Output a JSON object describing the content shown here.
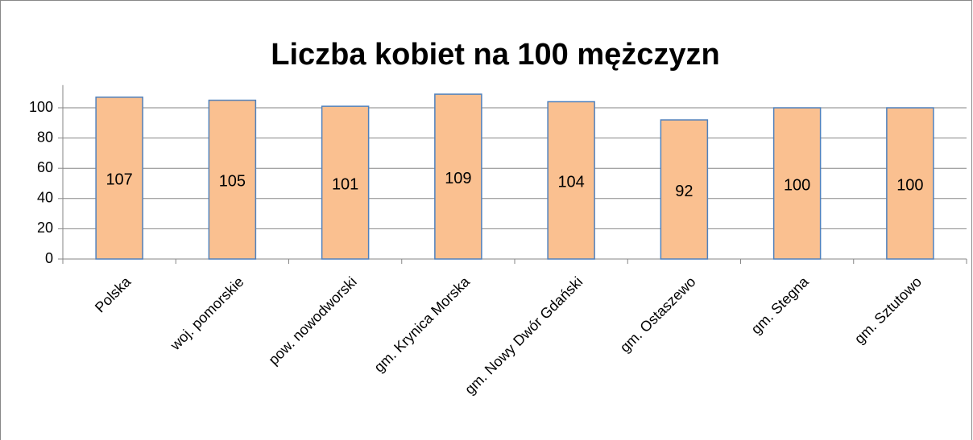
{
  "chart_data": {
    "type": "bar",
    "title": "Liczba kobiet na 100 mężczyzn",
    "categories": [
      "Polska",
      "woj. pomorskie",
      "pow. nowodworski",
      "gm. Krynica Morska",
      "gm. Nowy Dwór Gdański",
      "gm. Ostaszewo",
      "gm. Stegna",
      "gm. Sztutowo"
    ],
    "values": [
      107,
      105,
      101,
      109,
      104,
      92,
      100,
      100
    ],
    "color": "#fac090",
    "edge_color": "#4f81bd",
    "ylim": [
      0,
      115
    ],
    "yticks": [
      0,
      20,
      40,
      60,
      80,
      100
    ],
    "grid": true
  }
}
